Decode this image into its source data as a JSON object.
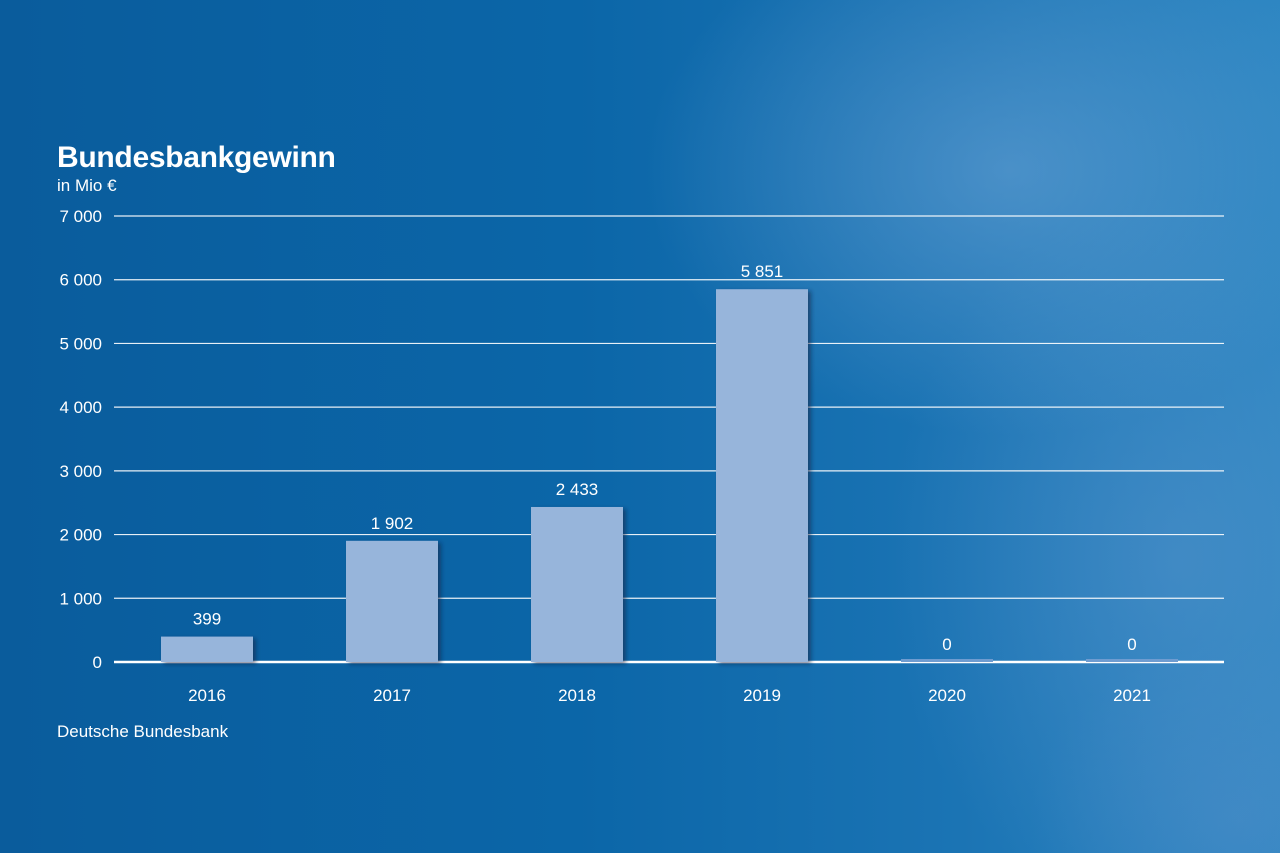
{
  "chart_data": {
    "type": "bar",
    "title": "Bundesbankgewinn",
    "subtitle": "in Mio €",
    "source": "Deutsche Bundesbank",
    "categories": [
      "2016",
      "2017",
      "2018",
      "2019",
      "2020",
      "2021"
    ],
    "values": [
      399,
      1902,
      2433,
      5851,
      0,
      0
    ],
    "value_labels": [
      "399",
      "1 902",
      "2 433",
      "5 851",
      "0",
      "0"
    ],
    "ylim": [
      0,
      7000
    ],
    "yticks": [
      0,
      1000,
      2000,
      3000,
      4000,
      5000,
      6000,
      7000
    ],
    "ytick_labels": [
      "0",
      "1 000",
      "2 000",
      "3 000",
      "4 000",
      "5 000",
      "6 000",
      "7 000"
    ],
    "xlabel": "",
    "ylabel": "",
    "grid": true,
    "colors": {
      "bar": "#97b5db",
      "bar_zero": "#6f9cd0",
      "grid": "#ffffff",
      "text": "#ffffff"
    }
  }
}
